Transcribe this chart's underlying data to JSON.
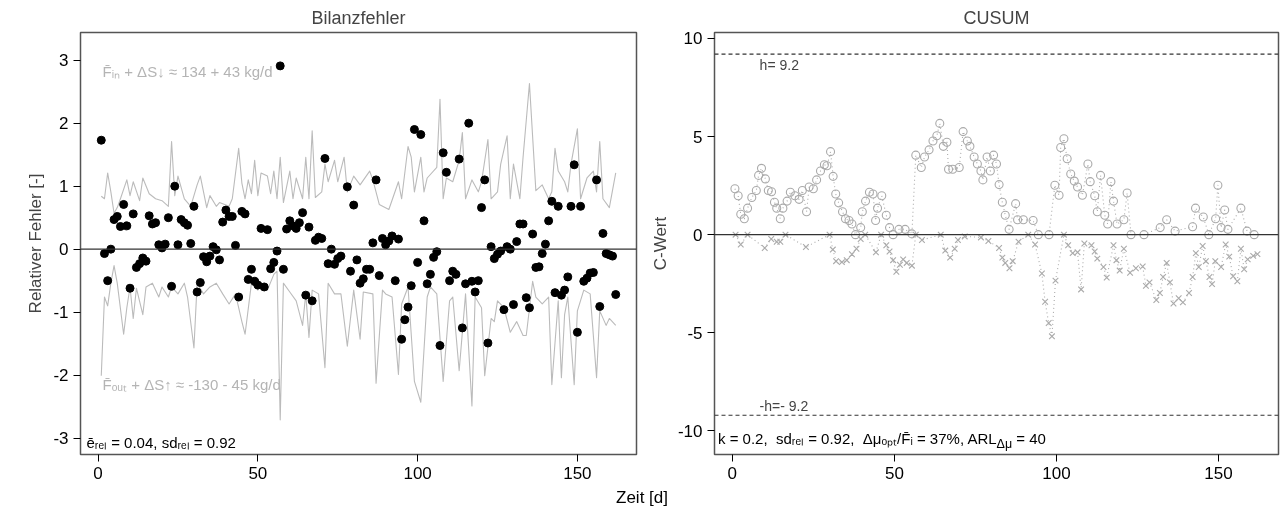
{
  "chart_data": [
    {
      "type": "scatter",
      "title": "Bilanzfehler",
      "xlabel": "Zeit [d]",
      "ylabel": "Relativer Fehler [-]",
      "xlim": [
        -5.5,
        168.5
      ],
      "ylim": [
        -3.26,
        3.44
      ],
      "xticks": [
        0,
        50,
        100,
        150
      ],
      "yticks": [
        -3,
        -2,
        -1,
        0,
        1,
        2,
        3
      ],
      "grid": false,
      "ref_lines": [
        {
          "axis": "y",
          "value": 0,
          "color": "#333333",
          "line_style": "solid"
        }
      ],
      "annotations": [
        "F̄ᵢₙ + ΔS↓ ≈ 134 + 43 kg/d",
        "F̄ₒᵤₜ + ΔS↑ ≈ -130 - 45 kg/d",
        "ēᵣₑₗ = 0.04,  sdᵣₑₗ = 0.92"
      ],
      "series": [
        {
          "type": "line",
          "color": "#bbbbbb",
          "marker": "none",
          "line_style": "solid",
          "x": [
            1,
            2,
            3,
            4,
            5,
            6,
            7,
            9,
            10,
            11,
            13,
            14,
            16,
            18,
            20,
            22,
            23,
            24,
            25,
            27,
            29,
            31,
            32,
            34,
            35,
            37,
            38,
            41,
            42,
            44,
            45,
            46,
            47,
            48,
            49,
            50,
            51,
            53,
            54,
            55,
            56,
            57,
            58,
            60,
            61,
            62,
            64,
            65,
            66,
            67,
            68,
            70,
            71,
            72,
            74,
            75,
            77,
            78,
            80,
            82,
            85,
            86,
            88,
            91,
            94,
            95,
            97,
            98,
            99,
            101,
            102,
            103,
            106,
            107,
            108,
            109,
            111,
            113,
            114,
            115,
            117,
            119,
            120,
            122,
            123,
            125,
            126,
            128,
            129,
            130,
            132,
            133,
            135,
            137,
            139,
            141,
            142,
            143,
            144,
            146,
            147,
            148,
            150,
            151,
            153,
            155,
            156,
            157,
            158,
            160,
            162
          ],
          "values": [
            0.84,
            0.8,
            1.21,
            0.91,
            0.57,
            0.66,
            0.8,
            1.1,
            0.85,
            1.07,
            0.77,
            1.13,
            0.88,
            0.8,
            0.77,
            0.68,
            1.71,
            0.85,
            1.16,
            0.8,
            0.68,
            1.02,
            1.16,
            0.66,
            0.85,
            0.68,
            0.74,
            0.68,
            0.8,
            1.6,
            1.05,
            0.8,
            1.1,
            0.88,
            1.41,
            0.85,
            1.21,
            1.16,
            0.88,
            1.24,
            0.8,
            1.46,
            0.74,
            1.24,
            0.8,
            1.13,
            0.8,
            1.46,
            0.8,
            1.88,
            0.82,
            0.91,
            1.35,
            1.07,
            1.41,
            1.07,
            1.46,
            0.91,
            1.16,
            1.02,
            1.24,
            1.1,
            0.71,
            0.63,
            1.07,
            0.8,
            1.63,
            1.46,
            0.91,
            1.46,
            0.91,
            1.13,
            1.3,
            2.38,
            0.8,
            1.13,
            1.07,
            1.41,
            1.85,
            0.8,
            1.1,
            0.91,
            1.07,
            1.74,
            0.8,
            0.91,
            1.35,
            1.8,
            0.8,
            1.35,
            0.8,
            1.46,
            2.63,
            0.93,
            1.02,
            0.8,
            0.91,
            1.6,
            1.24,
            1.07,
            0.91,
            1.35,
            1.91,
            0.8,
            1.13,
            1.24,
            0.91,
            1.71,
            0.8,
            0.66,
            1.21
          ]
        },
        {
          "type": "line",
          "color": "#bbbbbb",
          "marker": "none",
          "line_style": "solid",
          "x": [
            1,
            2,
            3,
            4,
            5,
            6,
            8,
            9,
            10,
            11,
            12,
            14,
            15,
            17,
            19,
            20,
            22,
            23,
            25,
            27,
            28,
            30,
            31,
            33,
            35,
            37,
            39,
            41,
            43,
            45,
            46,
            48,
            50,
            51,
            53,
            55,
            56,
            57,
            58,
            60,
            62,
            64,
            65,
            66,
            67,
            69,
            71,
            72,
            74,
            76,
            78,
            80,
            82,
            83,
            86,
            87,
            89,
            90,
            92,
            94,
            95,
            97,
            99,
            101,
            103,
            104,
            106,
            108,
            110,
            111,
            113,
            115,
            117,
            118,
            120,
            121,
            123,
            124,
            125,
            127,
            129,
            131,
            133,
            134,
            136,
            137,
            139,
            141,
            142,
            144,
            145,
            146,
            147,
            149,
            150,
            152,
            154,
            156,
            157,
            159,
            160,
            162
          ],
          "values": [
            -2.01,
            -0.76,
            -0.9,
            -0.54,
            -0.26,
            -0.54,
            -1.35,
            -0.93,
            -0.6,
            -1.1,
            -0.62,
            -1.04,
            -0.6,
            -0.54,
            -0.76,
            -0.6,
            -0.76,
            -0.6,
            -0.71,
            -0.54,
            -0.76,
            -1.57,
            -0.54,
            -0.71,
            -0.6,
            -0.54,
            -0.71,
            -0.87,
            -0.71,
            -1.15,
            -1.35,
            -0.54,
            -0.65,
            -0.54,
            -0.65,
            -0.4,
            -0.35,
            -2.71,
            -0.54,
            -0.68,
            -0.82,
            -1.21,
            -0.71,
            -1.4,
            -0.65,
            -0.71,
            -1.88,
            -0.54,
            -0.71,
            -0.71,
            -1.54,
            -0.65,
            -1.43,
            -0.68,
            -0.71,
            -2.13,
            -0.65,
            -0.71,
            -0.76,
            -1.99,
            -0.87,
            -0.6,
            -2.1,
            -2.43,
            -0.76,
            -0.6,
            -0.71,
            -2.1,
            -0.82,
            -0.76,
            -1.93,
            -0.71,
            -2.49,
            -0.76,
            -0.93,
            -2.01,
            -1.1,
            -1.15,
            -0.82,
            -0.93,
            -1.32,
            -1.15,
            -1.37,
            -1.37,
            -0.51,
            -0.76,
            -0.87,
            -0.76,
            -2.15,
            -0.82,
            -2.04,
            -1.04,
            -0.76,
            -2.15,
            -0.98,
            -0.65,
            -0.71,
            -2.04,
            -0.98,
            -1.21,
            -1.1,
            -1.21
          ]
        },
        {
          "type": "scatter",
          "color": "#000000",
          "marker": "circle",
          "x": [
            1,
            2,
            3,
            4,
            5,
            6,
            7,
            8,
            9,
            10,
            11,
            12,
            13,
            14,
            15,
            16,
            17,
            18,
            19,
            20,
            21,
            22,
            23,
            24,
            25,
            26,
            27,
            28,
            29,
            30,
            31,
            32,
            33,
            34,
            35,
            36,
            37,
            38,
            39,
            40,
            41,
            42,
            43,
            44,
            45,
            46,
            47,
            48,
            49,
            50,
            51,
            52,
            53,
            54,
            55,
            56,
            57,
            58,
            59,
            60,
            61,
            62,
            63,
            64,
            65,
            66,
            67,
            68,
            69,
            70,
            71,
            72,
            73,
            74,
            75,
            76,
            78,
            79,
            80,
            81,
            82,
            83,
            84,
            85,
            86,
            87,
            88,
            89,
            90,
            91,
            92,
            93,
            94,
            95,
            96,
            97,
            98,
            99,
            100,
            101,
            102,
            103,
            104,
            105,
            106,
            107,
            108,
            109,
            110,
            111,
            112,
            113,
            114,
            115,
            116,
            117,
            118,
            119,
            120,
            121,
            122,
            123,
            124,
            125,
            126,
            127,
            128,
            129,
            130,
            131,
            132,
            133,
            134,
            135,
            136,
            137,
            138,
            139,
            140,
            141,
            142,
            143,
            144,
            145,
            146,
            147,
            148,
            149,
            150,
            151,
            152,
            153,
            154,
            155,
            156,
            157,
            158,
            159,
            160,
            161,
            162
          ],
          "values": [
            1.73,
            -0.07,
            -0.5,
            0,
            0.47,
            0.52,
            0.36,
            0.71,
            0.37,
            -0.62,
            0.56,
            -0.29,
            -0.23,
            -0.14,
            -0.19,
            0.53,
            0.4,
            0.42,
            0.07,
            0.02,
            0.08,
            0.5,
            -0.59,
            1.0,
            0.07,
            0.47,
            0.42,
            0.38,
            0.09,
            0.68,
            -0.68,
            -0.53,
            -0.12,
            -0.2,
            -0.11,
            0.04,
            -0.01,
            -0.17,
            0.43,
            0.62,
            0.52,
            0.52,
            0.06,
            -0.76,
            0.6,
            0.56,
            -0.48,
            -0.32,
            -0.51,
            -0.57,
            0.33,
            -0.6,
            0.31,
            -0.31,
            -0.21,
            -0.03,
            2.91,
            -0.32,
            0.32,
            0.45,
            0.37,
            0.33,
            0.42,
            0.58,
            -0.73,
            0.35,
            -0.82,
            0.14,
            0.19,
            0.17,
            1.44,
            -0.23,
            0,
            -0.24,
            -0.15,
            -0.11,
            0.99,
            -0.35,
            0.7,
            -0.17,
            -0.54,
            -0.47,
            -0.32,
            -0.32,
            0.1,
            1.1,
            -0.42,
            0.17,
            0.07,
            0.13,
            0.21,
            -0.5,
            0.16,
            -1.43,
            -1.12,
            -0.92,
            -0.58,
            1.9,
            -0.21,
            1.82,
            0.45,
            -0.55,
            -0.4,
            -0.13,
            -0.04,
            -1.53,
            1.53,
            1.22,
            -0.5,
            -0.35,
            -0.4,
            1.43,
            -1.25,
            -0.55,
            2.0,
            -0.51,
            -0.68,
            -0.5,
            0.66,
            1.1,
            -1.49,
            0.04,
            -0.15,
            -0.08,
            -0.03,
            -0.96,
            0.04,
            0,
            -0.88,
            0.12,
            0.4,
            0.4,
            -0.77,
            -0.93,
            0.24,
            -0.29,
            -0.28,
            -0.07,
            0.08,
            0.45,
            0.76,
            -0.69,
            0.68,
            -0.73,
            -0.65,
            -0.44,
            0.68,
            1.34,
            -1.32,
            0.68,
            -0.51,
            -0.46,
            -0.38,
            -0.37,
            1.1,
            -0.91,
            0.25,
            -0.07,
            -0.09,
            -0.11,
            -0.72
          ]
        }
      ]
    },
    {
      "type": "line",
      "title": "CUSUM",
      "ylabel": "C-Wert",
      "xlim": [
        -5.5,
        168.5
      ],
      "ylim": [
        -11.2,
        10.3
      ],
      "xticks": [
        0,
        50,
        100,
        150
      ],
      "yticks": [
        -10,
        -5,
        0,
        5,
        10
      ],
      "grid": false,
      "line_style": "dotted",
      "ref_lines": [
        {
          "axis": "y",
          "value": 9.2,
          "label": "h= 9.2",
          "color": "#333333",
          "line_style": "dashed"
        },
        {
          "axis": "y",
          "value": -9.2,
          "label": "-h=- 9.2",
          "color": "#333333",
          "line_style": "dashed"
        },
        {
          "axis": "y",
          "value": 0,
          "color": "#333333",
          "line_style": "solid"
        }
      ],
      "annotations": [
        "k = 0.2,  sdᵣₑₗ = 0.92,  Δμₒₚₜ/F̄ᵢ = 37%, ARL$_{Δμ}$ = 40"
      ],
      "series": [
        {
          "color": "#aaaaaa",
          "marker": "circle",
          "x": [
            0.8,
            1.8,
            2.6,
            3.7,
            4.7,
            6.0,
            7.4,
            8.1,
            9.0,
            10.2,
            11.1,
            12.1,
            13.0,
            13.7,
            14.8,
            15.6,
            16.9,
            17.9,
            19.3,
            20.6,
            21.6,
            22.9,
            23.7,
            25,
            26,
            27.2,
            28.4,
            29.2,
            30.3,
            31.1,
            31.9,
            32.8,
            34,
            34.9,
            36,
            36.9,
            38,
            39.6,
            40.1,
            41.1,
            42.3,
            43.4,
            44.2,
            44.8,
            46.1,
            47.5,
            48.5,
            49.6,
            51.4,
            53.3,
            55.4,
            56.6,
            58.3,
            59.3,
            60.7,
            61.9,
            63.1,
            64,
            65.1,
            66.2,
            66.7,
            68,
            70,
            71.2,
            72.5,
            73.3,
            74.6,
            75.6,
            76.7,
            77.3,
            78.6,
            79.6,
            80.6,
            81.5,
            82.3,
            83.3,
            84.2,
            85.4,
            87.4,
            88,
            89.8,
            92.8,
            94.4,
            97.7,
            99.5,
            100.8,
            101.3,
            102.3,
            103.3,
            104.4,
            105.5,
            106.5,
            108,
            109.7,
            110.4,
            111.8,
            112.6,
            113.6,
            114.9,
            115.8,
            116.8,
            117.6,
            118.7,
            120.8,
            121.8,
            123,
            127,
            132,
            134,
            136.6,
            142,
            142.9,
            145.3,
            147,
            149.1,
            149.8,
            150.8,
            151.9,
            152.9,
            156.9,
            158.8,
            161
          ],
          "values": [
            2.34,
            1.98,
            1.04,
            0.81,
            1.35,
            1.89,
            2.25,
            3.02,
            3.38,
            2.84,
            2.25,
            2.19,
            1.65,
            1.35,
            0.81,
            1.35,
            1.71,
            2.16,
            1.98,
            1.8,
            2.25,
            1.17,
            2.43,
            2.34,
            2.79,
            3.24,
            3.56,
            3.51,
            4.23,
            2.97,
            2.07,
            1.62,
            1.17,
            0.81,
            0.72,
            0.54,
            0,
            0.36,
            1.17,
            1.71,
            2.16,
            2.07,
            0.72,
            1.35,
            1.98,
            0.99,
            0.36,
            0,
            0.27,
            0.27,
            0.04,
            4.05,
            3.42,
            3.96,
            4.32,
            4.77,
            5.04,
            5.67,
            4.5,
            4.71,
            3.33,
            3.33,
            3.42,
            5.25,
            4.77,
            4.5,
            3.96,
            3.6,
            3.24,
            2.79,
            3.96,
            3.24,
            4.05,
            3.6,
            2.55,
            1.65,
            0.99,
            0.27,
            1.58,
            0.76,
            0.76,
            0.72,
            0,
            0,
            2.52,
            2.01,
            4.44,
            4.89,
            3.87,
            3.09,
            2.73,
            2.43,
            2.01,
            3.6,
            2.7,
            1.98,
            1.17,
            3.02,
            0.99,
            0.54,
            2.7,
            1.71,
            0.54,
            0.76,
            2.12,
            0,
            0,
            0.36,
            0.76,
            0.18,
            0.4,
            1.35,
            0.9,
            0,
            0.81,
            2.52,
            0.36,
            1.26,
            0.27,
            1.35,
            0.18,
            0
          ]
        },
        {
          "color": "#aaaaaa",
          "marker": "cross",
          "x": [
            1,
            2.6,
            4.7,
            10,
            12,
            13.7,
            14.8,
            16.4,
            22.7,
            30,
            31,
            32,
            33.8,
            35.3,
            36.9,
            38.3,
            39.6,
            41,
            44.3,
            45.9,
            47.5,
            48.5,
            49.6,
            50.6,
            51.7,
            52.7,
            53.8,
            55.4,
            56.6,
            58.5,
            64.3,
            65.7,
            67.2,
            68.6,
            69.6,
            71.7,
            76.7,
            79,
            82.3,
            83.3,
            84.2,
            85.5,
            86.5,
            88.3,
            91.3,
            93.4,
            95.5,
            96.5,
            97.6,
            98.6,
            99.7,
            102.3,
            103.6,
            105,
            106.5,
            107.6,
            108.6,
            110.8,
            111.8,
            112.6,
            114.5,
            115.5,
            117.6,
            118.5,
            119.5,
            120.8,
            122.7,
            124.5,
            126.6,
            127.6,
            128.7,
            130.8,
            131.9,
            132.9,
            134,
            135,
            136.1,
            137.7,
            139,
            140.9,
            142,
            143,
            143.9,
            145.1,
            146.1,
            147.2,
            148,
            149,
            150.8,
            152.2,
            153.3,
            154.5,
            155.8,
            156.9,
            157.9,
            159,
            160.7,
            162
          ],
          "values": [
            0,
            -0.5,
            0,
            -0.68,
            -0.22,
            -0.36,
            -0.36,
            0,
            -0.63,
            0,
            -0.76,
            -1.35,
            -1.4,
            -1.3,
            -1.0,
            -0.72,
            -0.22,
            0,
            -0.9,
            0,
            -0.54,
            -0.86,
            -1.3,
            -1.89,
            -1.53,
            -1.26,
            -1.44,
            -1.58,
            0,
            -0.27,
            0,
            -0.81,
            -1.17,
            -0.72,
            -0.27,
            -0.09,
            -0.14,
            -0.32,
            -0.68,
            -1.17,
            -1.44,
            -1.71,
            -1.35,
            -0.36,
            0,
            -0.5,
            -1.98,
            -3.42,
            -4.5,
            -5.18,
            -2.34,
            0,
            -0.54,
            -0.94,
            -0.9,
            -2.79,
            -0.45,
            -0.54,
            -0.86,
            -1.22,
            -1.65,
            -2.19,
            -0.54,
            -1.3,
            -1.83,
            -0.72,
            -1.94,
            -1.71,
            -1.62,
            -2.61,
            -2.43,
            -3.33,
            -2.97,
            -2.16,
            -1.44,
            -2.43,
            -3.51,
            -3.24,
            -3.45,
            -2.97,
            -2.16,
            -0.94,
            -1.65,
            -0.58,
            -1.35,
            -2.16,
            -2.52,
            -1.35,
            -1.65,
            -0.5,
            -1.12,
            -2.12,
            -2.37,
            -0.72,
            -1.76,
            -1.26,
            -1.08,
            -0.99
          ]
        }
      ]
    }
  ]
}
